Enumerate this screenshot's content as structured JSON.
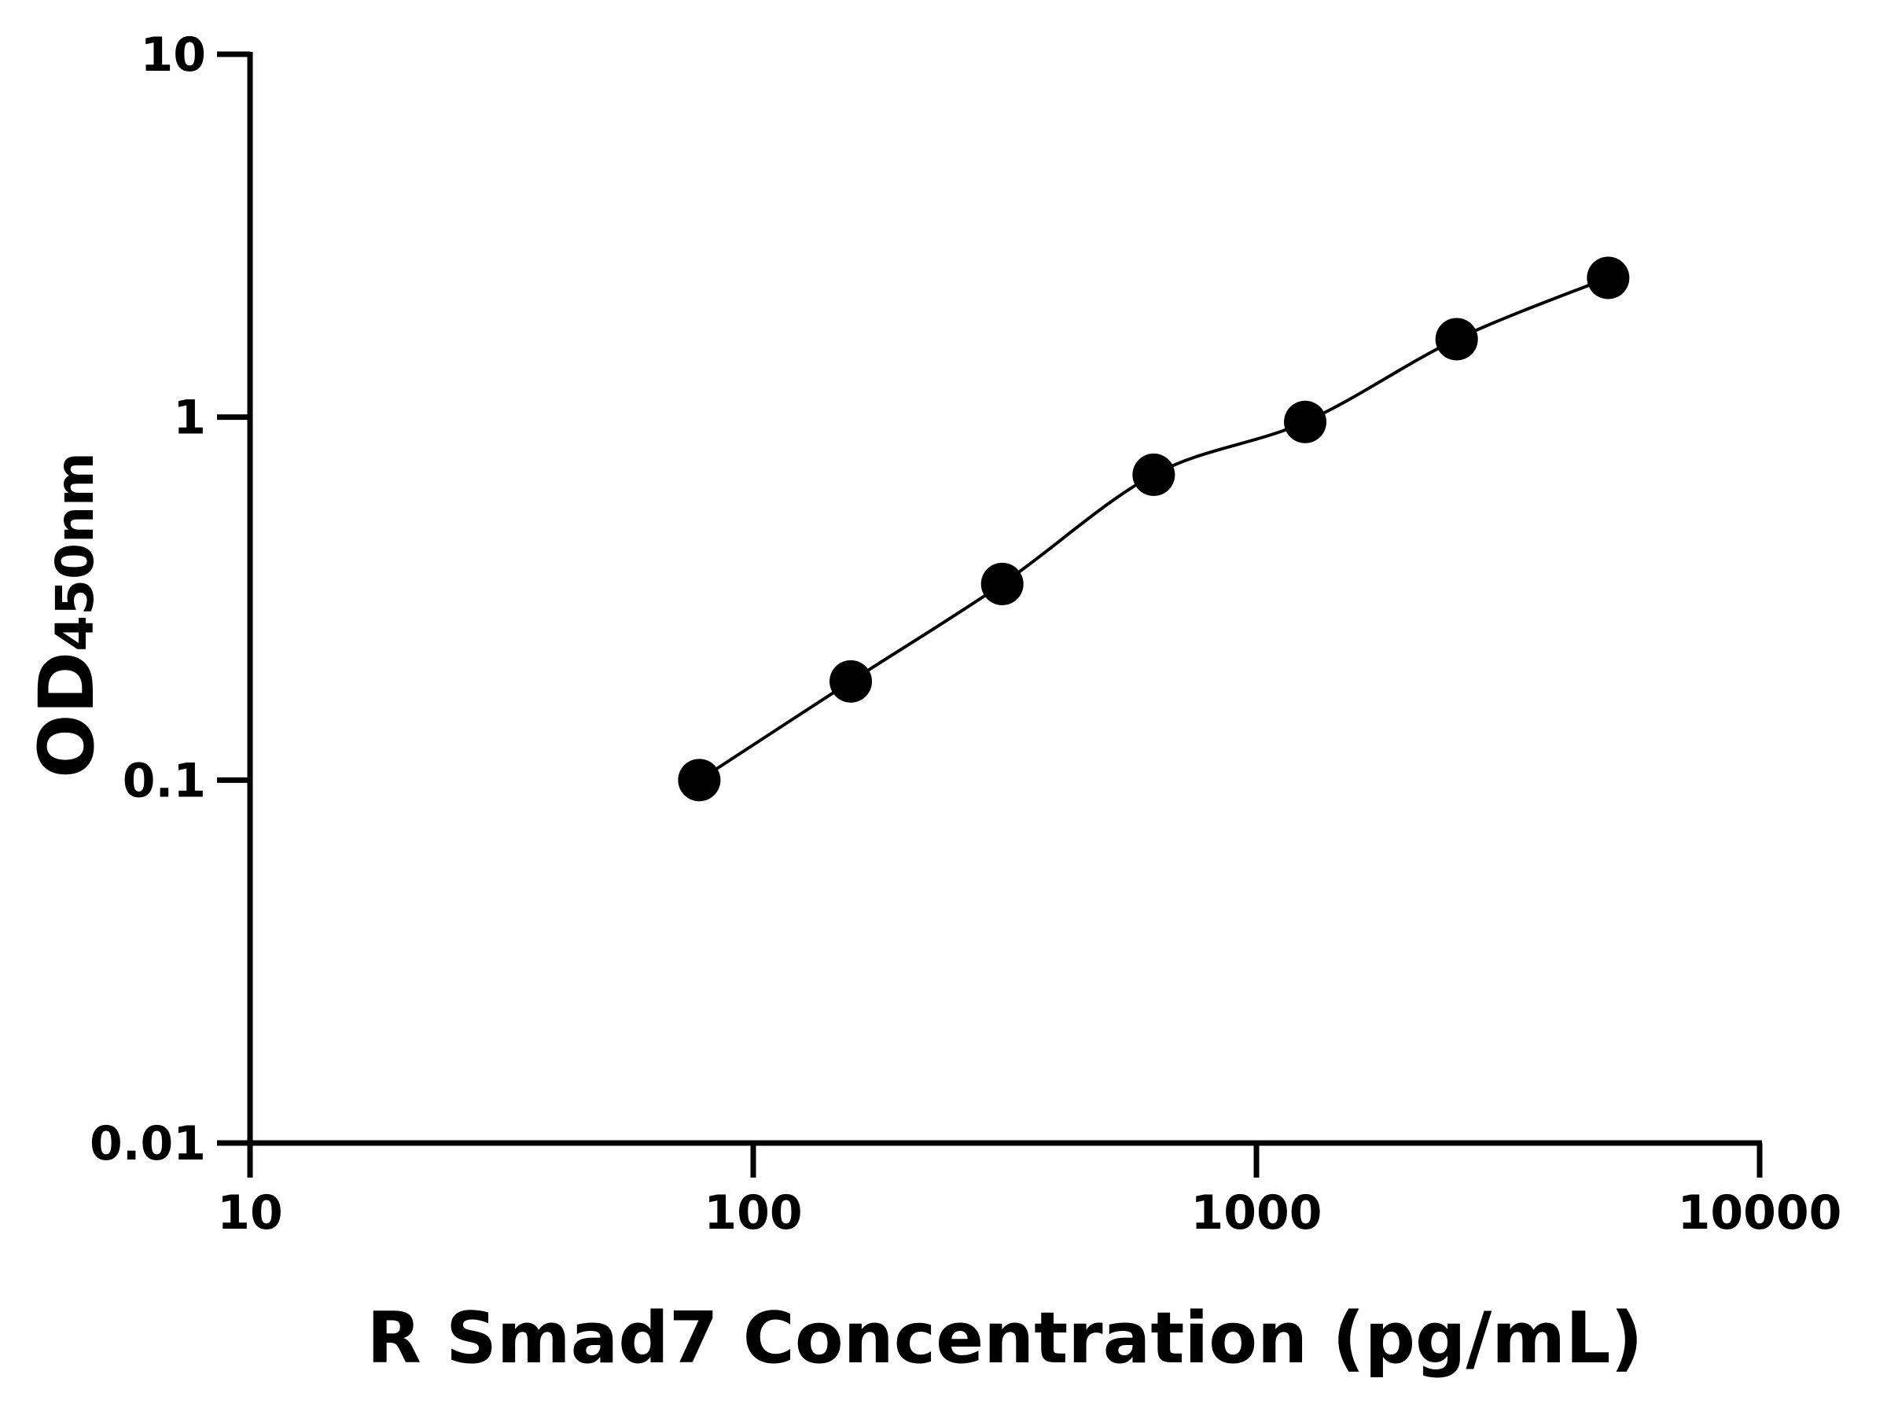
{
  "chart_data": {
    "type": "scatter",
    "title": "",
    "xlabel": "R Smad7 Concentration (pg/mL)",
    "ylabel_main": "OD",
    "ylabel_sub": "450nm",
    "x_scale": "log",
    "y_scale": "log",
    "xlim": [
      10,
      10000
    ],
    "ylim": [
      0.01,
      10
    ],
    "x_ticks": [
      "10",
      "100",
      "1000",
      "10000"
    ],
    "y_ticks": [
      "0.01",
      "0.1",
      "1",
      "10"
    ],
    "grid": false,
    "legend": "none",
    "fit_curve": true,
    "point_color": "#000000",
    "x": [
      78.125,
      156.25,
      312.5,
      625,
      1250,
      2500,
      5000
    ],
    "y": [
      0.1,
      0.187,
      0.347,
      0.694,
      0.97,
      1.64,
      2.42
    ]
  }
}
